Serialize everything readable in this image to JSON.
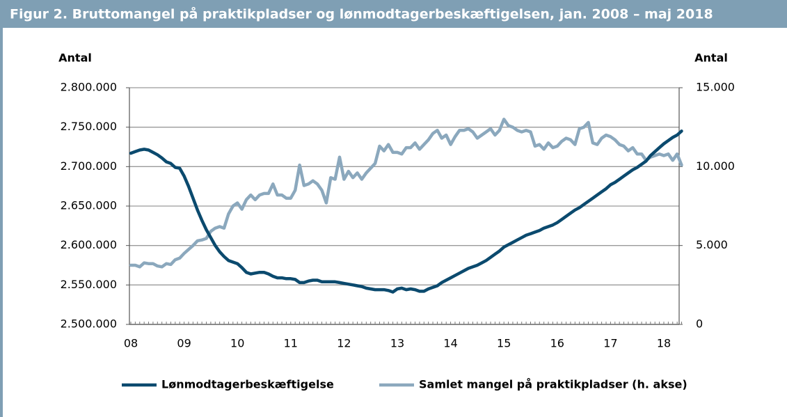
{
  "chart_data": {
    "type": "line",
    "title": "Figur 2. Bruttomangel på praktikpladser og lønmodtagerbeskæftigelsen, jan. 2008 – maj 2018",
    "ylabel": "Antal",
    "y2label": "Antal",
    "categories": [
      "08",
      null,
      null,
      null,
      null,
      null,
      null,
      null,
      null,
      null,
      null,
      null,
      "09",
      null,
      null,
      null,
      null,
      null,
      null,
      null,
      null,
      null,
      null,
      null,
      "10",
      null,
      null,
      null,
      null,
      null,
      null,
      null,
      null,
      null,
      null,
      null,
      "11",
      null,
      null,
      null,
      null,
      null,
      null,
      null,
      null,
      null,
      null,
      null,
      "12",
      null,
      null,
      null,
      null,
      null,
      null,
      null,
      null,
      null,
      null,
      null,
      "13",
      null,
      null,
      null,
      null,
      null,
      null,
      null,
      null,
      null,
      null,
      null,
      "14",
      null,
      null,
      null,
      null,
      null,
      null,
      null,
      null,
      null,
      null,
      null,
      "15",
      null,
      null,
      null,
      null,
      null,
      null,
      null,
      null,
      null,
      null,
      null,
      "16",
      null,
      null,
      null,
      null,
      null,
      null,
      null,
      null,
      null,
      null,
      null,
      "17",
      null,
      null,
      null,
      null,
      null,
      null,
      null,
      null,
      null,
      null,
      null,
      "18",
      null,
      null,
      null,
      null
    ],
    "ylim": [
      2500000,
      2800000
    ],
    "yticks": [
      {
        "value": 2500000,
        "label": "2.500.000"
      },
      {
        "value": 2550000,
        "label": "2.550.000"
      },
      {
        "value": 2600000,
        "label": "2.600.000"
      },
      {
        "value": 2650000,
        "label": "2.650.000"
      },
      {
        "value": 2700000,
        "label": "2.700.000"
      },
      {
        "value": 2750000,
        "label": "2.750.000"
      },
      {
        "value": 2800000,
        "label": "2.800.000"
      }
    ],
    "y2lim": [
      0,
      15000
    ],
    "y2ticks": [
      0,
      {
        "value": 5000,
        "label": "5.000"
      },
      {
        "value": 10000,
        "label": "10.000"
      },
      {
        "value": 15000,
        "label": "15.000"
      }
    ],
    "grid": true,
    "legend": "bottom",
    "series": [
      {
        "name": "Lønmodtagerbeskæftigelse",
        "color": "#0b4a6e",
        "values": [
          2717000,
          2719000,
          2721000,
          2722000,
          2721000,
          2718000,
          2715000,
          2711000,
          2706000,
          2704000,
          2699000,
          2698000,
          2688000,
          2675000,
          2660000,
          2645000,
          2632000,
          2620000,
          2610000,
          2600000,
          2592000,
          2586000,
          2581000,
          2579000,
          2577000,
          2572000,
          2566000,
          2564000,
          2565000,
          2566000,
          2566000,
          2564000,
          2561000,
          2559000,
          2559000,
          2558000,
          2558000,
          2557000,
          2553000,
          2553000,
          2555000,
          2556000,
          2556000,
          2554000,
          2554000,
          2554000,
          2554000,
          2553000,
          2552000,
          2551000,
          2550000,
          2549000,
          2548000,
          2546000,
          2545000,
          2544000,
          2544000,
          2544000,
          2543000,
          2541000,
          2545000,
          2546000,
          2544000,
          2545000,
          2544000,
          2542000,
          2542000,
          2545000,
          2547000,
          2549000,
          2553000,
          2556000,
          2559000,
          2562000,
          2565000,
          2568000,
          2571000,
          2573000,
          2575000,
          2578000,
          2581000,
          2585000,
          2589000,
          2593000,
          2598000,
          2601000,
          2604000,
          2607000,
          2610000,
          2613000,
          2615000,
          2617000,
          2619000,
          2622000,
          2624000,
          2626000,
          2629000,
          2633000,
          2637000,
          2641000,
          2645000,
          2648000,
          2652000,
          2656000,
          2660000,
          2664000,
          2668000,
          2672000,
          2677000,
          2680000,
          2684000,
          2688000,
          2692000,
          2696000,
          2699000,
          2703000,
          2707000,
          2714000,
          2719000,
          2724000,
          2729000,
          2733000,
          2737000,
          2740000,
          2745000
        ]
      },
      {
        "name": "Samlet mangel på praktikpladser (h. akse)",
        "color": "#8ba8bd",
        "axis": "y2",
        "values": [
          3750,
          3750,
          3650,
          3900,
          3850,
          3850,
          3700,
          3650,
          3850,
          3800,
          4100,
          4200,
          4500,
          4750,
          5000,
          5300,
          5350,
          5450,
          5900,
          6100,
          6200,
          6100,
          7000,
          7500,
          7700,
          7300,
          7900,
          8200,
          7900,
          8200,
          8300,
          8300,
          8900,
          8200,
          8200,
          8000,
          8000,
          8500,
          10100,
          8800,
          8900,
          9100,
          8900,
          8500,
          7700,
          9300,
          9200,
          10600,
          9200,
          9700,
          9300,
          9600,
          9200,
          9600,
          9900,
          10200,
          11300,
          11000,
          11400,
          10900,
          10900,
          10800,
          11200,
          11200,
          11500,
          11100,
          11400,
          11700,
          12100,
          12300,
          11800,
          12000,
          11400,
          11900,
          12300,
          12300,
          12400,
          12200,
          11800,
          12000,
          12200,
          12400,
          12000,
          12300,
          13000,
          12600,
          12500,
          12300,
          12200,
          12300,
          12200,
          11300,
          11400,
          11100,
          11500,
          11200,
          11300,
          11600,
          11800,
          11700,
          11400,
          12400,
          12500,
          12800,
          11500,
          11400,
          11800,
          12000,
          11900,
          11700,
          11400,
          11300,
          11000,
          11200,
          10800,
          10800,
          10400,
          10600,
          10700,
          10800,
          10700,
          10800,
          10400,
          10800,
          10100
        ]
      }
    ]
  }
}
